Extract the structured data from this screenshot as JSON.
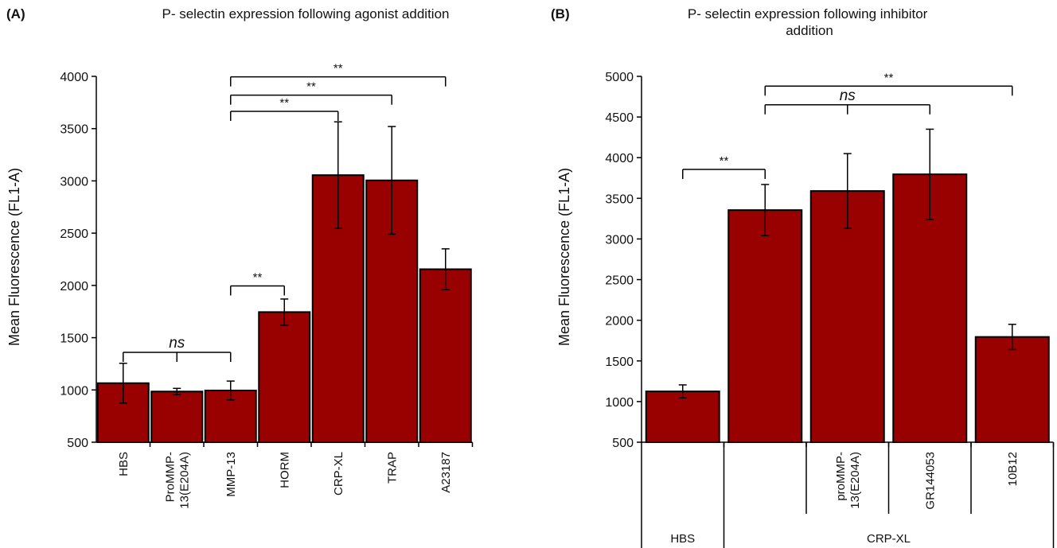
{
  "chart_data": [
    {
      "type": "bar",
      "panel_label": "(A)",
      "title": "P- selectin expression following agonist addition",
      "ylabel": "Mean Fluorescence (FL1-A)",
      "ylim": [
        500,
        4000
      ],
      "yticks": [
        500,
        1000,
        1500,
        2000,
        2500,
        3000,
        3500,
        4000
      ],
      "categories": [
        "HBS",
        "ProMMP-\n13(E204A)",
        "MMP-13",
        "HORM",
        "CRP-XL",
        "TRAP",
        "A23187"
      ],
      "values": [
        1065,
        985,
        995,
        1745,
        3055,
        3005,
        2155
      ],
      "errors": [
        190,
        30,
        90,
        125,
        510,
        515,
        195
      ],
      "color": "#990000",
      "significance": [
        {
          "from": 0,
          "to": 2,
          "ticks": [
            0,
            1,
            2
          ],
          "label": "ns",
          "level": 1360
        },
        {
          "from": 2,
          "to": 3,
          "ticks": [
            2,
            3
          ],
          "label": "**",
          "level": 1995
        },
        {
          "from": 2,
          "to": 4,
          "ticks": [
            2,
            4
          ],
          "label": "**",
          "level": 3665
        },
        {
          "from": 2,
          "to": 5,
          "ticks": [
            2,
            5
          ],
          "label": "**",
          "level": 3820
        },
        {
          "from": 2,
          "to": 6,
          "ticks": [
            2,
            6
          ],
          "label": "**",
          "level": 3995
        }
      ]
    },
    {
      "type": "bar",
      "panel_label": "(B)",
      "title": "P- selectin expression following inhibitor\naddition",
      "ylabel": "Mean Fluorescence (FL1-A)",
      "ylim": [
        500,
        5000
      ],
      "yticks": [
        500,
        1000,
        1500,
        2000,
        2500,
        3000,
        3500,
        4000,
        4500,
        5000
      ],
      "categories": [
        "",
        "",
        "proMMP-\n13(E204A)",
        "GR144053",
        "10B12"
      ],
      "group_labels": [
        {
          "label": "HBS",
          "from": 0,
          "to": 0
        },
        {
          "label": "CRP-XL",
          "from": 1,
          "to": 4
        }
      ],
      "values": [
        1125,
        3355,
        3590,
        3795,
        1795
      ],
      "errors": [
        80,
        315,
        460,
        555,
        155
      ],
      "color": "#990000",
      "significance": [
        {
          "from": 0,
          "to": 1,
          "ticks": [
            0,
            1
          ],
          "label": "**",
          "level": 3855
        },
        {
          "from": 1,
          "to": 3,
          "ticks": [
            1,
            2,
            3
          ],
          "label": "ns",
          "level": 4650
        },
        {
          "from": 1,
          "to": 4,
          "ticks": [
            1,
            4
          ],
          "label": "**",
          "level": 4880
        }
      ]
    }
  ]
}
